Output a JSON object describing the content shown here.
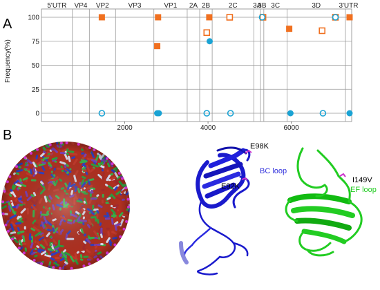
{
  "panels": {
    "a": "A",
    "b": "B"
  },
  "chart_data": {
    "type": "scatter",
    "ylabel": "Frequency(%)",
    "xlim": [
      0,
      7450
    ],
    "ylim": [
      0,
      100
    ],
    "x_ticks": [
      {
        "value": 2000,
        "label": "2000"
      },
      {
        "value": 4000,
        "label": "4000"
      },
      {
        "value": 6000,
        "label": "6000"
      }
    ],
    "y_ticks": [
      {
        "value": 0,
        "label": "0"
      },
      {
        "value": 25,
        "label": "25"
      },
      {
        "value": 50,
        "label": "50"
      },
      {
        "value": 75,
        "label": "75"
      },
      {
        "value": 100,
        "label": "100"
      }
    ],
    "regions": [
      {
        "label": "5'UTR",
        "start": 0,
        "end": 742
      },
      {
        "label": "VP4",
        "start": 742,
        "end": 1150
      },
      {
        "label": "VP2",
        "start": 1150,
        "end": 1780
      },
      {
        "label": "VP3",
        "start": 1780,
        "end": 2700
      },
      {
        "label": "VP1",
        "start": 2700,
        "end": 3500
      },
      {
        "label": "2A",
        "start": 3500,
        "end": 3800
      },
      {
        "label": "2B",
        "start": 3800,
        "end": 4100
      },
      {
        "label": "2C",
        "start": 4100,
        "end": 5100
      },
      {
        "label": "3A",
        "start": 5100,
        "end": 5260
      },
      {
        "label": "3B",
        "start": 5260,
        "end": 5340
      },
      {
        "label": "3C",
        "start": 5340,
        "end": 5900
      },
      {
        "label": "3D",
        "start": 5900,
        "end": 7300
      },
      {
        "label": "3'UTR",
        "start": 7300,
        "end": 7450
      }
    ],
    "series": [
      {
        "marker": "filled-square",
        "color": "#f07020",
        "points": [
          [
            1450,
            100
          ],
          [
            2800,
            100
          ],
          [
            2780,
            70
          ],
          [
            4030,
            100
          ],
          [
            5950,
            88
          ],
          [
            7400,
            100
          ]
        ]
      },
      {
        "marker": "open-square",
        "color": "#f07020",
        "points": [
          [
            3970,
            84
          ],
          [
            4520,
            100
          ],
          [
            5320,
            100
          ],
          [
            6740,
            86
          ],
          [
            7060,
            100
          ]
        ]
      },
      {
        "marker": "filled-circle",
        "color": "#1aa3d4",
        "points": [
          [
            2780,
            0
          ],
          [
            2820,
            0
          ],
          [
            4040,
            75
          ],
          [
            5980,
            0
          ],
          [
            7400,
            0
          ]
        ]
      },
      {
        "marker": "open-circle",
        "color": "#1aa3d4",
        "points": [
          [
            1450,
            0
          ],
          [
            3970,
            0
          ],
          [
            4540,
            0
          ],
          [
            5300,
            100
          ],
          [
            6760,
            0
          ],
          [
            7060,
            100
          ]
        ]
      }
    ]
  },
  "structure_labels": {
    "e98k": "E98K",
    "bc_loop": "BC loop",
    "e92k": "E92K",
    "i149v": "I149V",
    "ef_loop": "EF loop"
  }
}
